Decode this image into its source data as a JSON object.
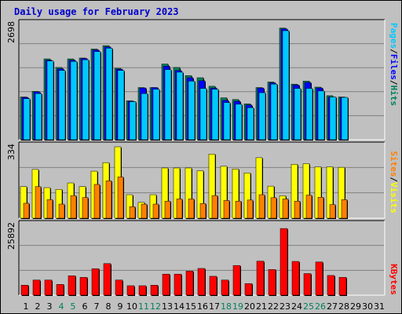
{
  "title": "Daily usage for February 2023",
  "colors": {
    "hits": "#00805c",
    "files": "#0000ff",
    "pages": "#00c8ff",
    "visits": "#ffff00",
    "sites": "#ff8000",
    "kbytes": "#ff0000",
    "weekend": "#00805c"
  },
  "panel_labels": {
    "top": {
      "pages": "Pages",
      "files": "Files",
      "hits": "Hits",
      "sep": "/"
    },
    "middle": {
      "sites": "Sites",
      "visits": "Visits",
      "sep": "/"
    },
    "bottom": {
      "kbytes": "KBytes"
    }
  },
  "chart_data": [
    {
      "type": "bar",
      "panel": "hits-files-pages",
      "x": [
        1,
        2,
        3,
        4,
        5,
        6,
        7,
        8,
        9,
        10,
        11,
        12,
        13,
        14,
        15,
        16,
        17,
        18,
        19,
        20,
        21,
        22,
        23,
        24,
        25,
        26,
        27,
        28
      ],
      "ymax_label": "2698",
      "ylim": [
        0,
        2698
      ],
      "series": [
        {
          "name": "Hits",
          "values": [
            1000,
            1130,
            1890,
            1690,
            1890,
            1910,
            2120,
            2200,
            1670,
            910,
            1220,
            1220,
            1770,
            1690,
            1500,
            1450,
            1250,
            980,
            940,
            840,
            1220,
            1350,
            2610,
            1300,
            1370,
            1230,
            1030,
            1000
          ]
        },
        {
          "name": "Files",
          "values": [
            990,
            1120,
            1860,
            1660,
            1860,
            1900,
            2100,
            2170,
            1650,
            900,
            1210,
            1220,
            1720,
            1620,
            1450,
            1380,
            1210,
            920,
            900,
            810,
            1210,
            1330,
            2590,
            1280,
            1340,
            1210,
            1000,
            990
          ]
        },
        {
          "name": "Pages",
          "values": [
            960,
            1080,
            1840,
            1620,
            1830,
            1870,
            2060,
            2140,
            1620,
            890,
            1080,
            1180,
            1640,
            1580,
            1370,
            1200,
            1180,
            870,
            830,
            750,
            1100,
            1300,
            2550,
            1200,
            1200,
            1140,
            1000,
            990
          ]
        }
      ]
    },
    {
      "type": "bar",
      "panel": "visits-sites",
      "x": [
        1,
        2,
        3,
        4,
        5,
        6,
        7,
        8,
        9,
        10,
        11,
        12,
        13,
        14,
        15,
        16,
        17,
        18,
        19,
        20,
        21,
        22,
        23,
        24,
        25,
        26,
        27,
        28
      ],
      "ymax_label": "334",
      "ylim": [
        0,
        334
      ],
      "series": [
        {
          "name": "Visits",
          "values": [
            148,
            228,
            143,
            135,
            165,
            148,
            220,
            260,
            334,
            110,
            74,
            110,
            235,
            235,
            235,
            222,
            300,
            243,
            230,
            212,
            283,
            150,
            105,
            252,
            255,
            240,
            240,
            238
          ]
        },
        {
          "name": "Sites",
          "values": [
            70,
            148,
            87,
            66,
            106,
            97,
            158,
            175,
            193,
            54,
            66,
            66,
            80,
            90,
            90,
            69,
            106,
            83,
            80,
            85,
            110,
            96,
            90,
            80,
            108,
            98,
            64,
            87
          ]
        }
      ]
    },
    {
      "type": "bar",
      "panel": "kbytes",
      "x": [
        1,
        2,
        3,
        4,
        5,
        6,
        7,
        8,
        9,
        10,
        11,
        12,
        13,
        14,
        15,
        16,
        17,
        18,
        19,
        20,
        21,
        22,
        23,
        24,
        25,
        26,
        27,
        28
      ],
      "ymax_label": "25892",
      "ylim": [
        0,
        25892
      ],
      "series": [
        {
          "name": "KBytes",
          "values": [
            3700,
            5600,
            5600,
            4000,
            7200,
            6600,
            9800,
            11700,
            5600,
            3500,
            3500,
            3700,
            7800,
            7800,
            8900,
            9900,
            7000,
            5600,
            11000,
            4300,
            12600,
            9500,
            24700,
            12500,
            8000,
            12300,
            7300,
            6600
          ]
        }
      ]
    }
  ],
  "x_axis": {
    "labels": [
      "1",
      "2",
      "3",
      "4",
      "5",
      "6",
      "7",
      "8",
      "9",
      "10",
      "11",
      "12",
      "13",
      "14",
      "15",
      "16",
      "17",
      "18",
      "19",
      "20",
      "21",
      "22",
      "23",
      "24",
      "25",
      "26",
      "27",
      "28",
      "29",
      "30",
      "31"
    ],
    "weekend_days": [
      4,
      5,
      11,
      12,
      18,
      19,
      25,
      26
    ]
  }
}
